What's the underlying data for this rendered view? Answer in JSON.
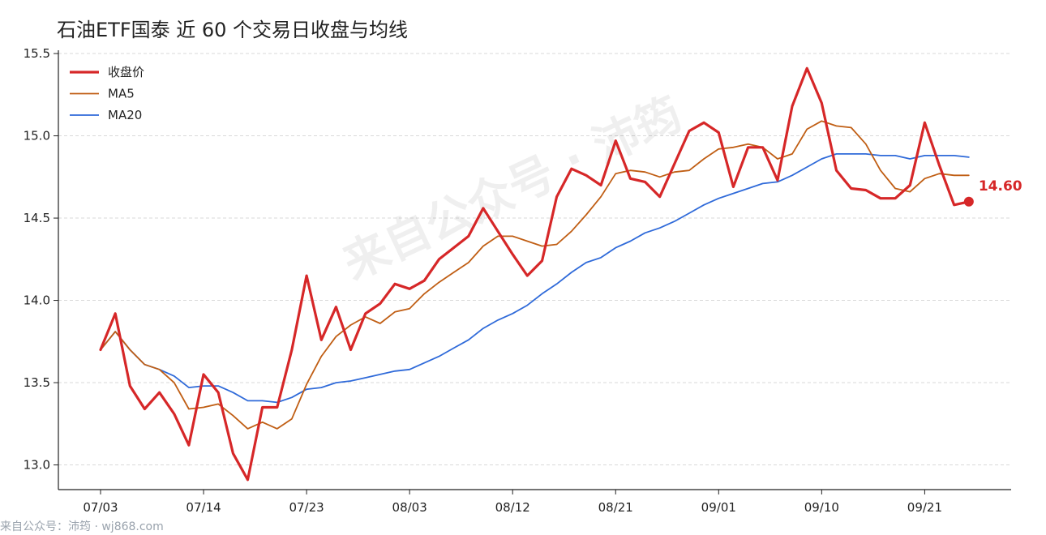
{
  "chart_data": {
    "type": "line",
    "title": "石油ETF国泰 近 60 个交易日收盘与均线",
    "xlabel": "",
    "ylabel": "",
    "ylim": [
      12.85,
      15.52
    ],
    "yticks": [
      13.0,
      13.5,
      14.0,
      14.5,
      15.0,
      15.5
    ],
    "grid": true,
    "legend_position": "top-left",
    "x_tick_labels": [
      {
        "index": 0,
        "label": "07/03"
      },
      {
        "index": 7,
        "label": "07/14"
      },
      {
        "index": 14,
        "label": "07/23"
      },
      {
        "index": 21,
        "label": "08/03"
      },
      {
        "index": 28,
        "label": "08/12"
      },
      {
        "index": 35,
        "label": "08/21"
      },
      {
        "index": 42,
        "label": "09/01"
      },
      {
        "index": 49,
        "label": "09/10"
      },
      {
        "index": 56,
        "label": "09/21"
      }
    ],
    "series": [
      {
        "name": "收盘价",
        "color": "#d62728",
        "values": [
          13.7,
          13.92,
          13.48,
          13.34,
          13.44,
          13.31,
          13.12,
          13.55,
          13.44,
          13.07,
          12.91,
          13.35,
          13.35,
          13.7,
          14.15,
          13.76,
          13.96,
          13.7,
          13.92,
          13.98,
          14.1,
          14.07,
          14.12,
          14.25,
          14.32,
          14.39,
          14.56,
          14.42,
          14.28,
          14.15,
          14.24,
          14.63,
          14.8,
          14.76,
          14.7,
          14.97,
          14.74,
          14.72,
          14.63,
          14.83,
          15.03,
          15.08,
          15.02,
          14.69,
          14.93,
          14.93,
          14.73,
          15.18,
          15.41,
          15.2,
          14.79,
          14.68,
          14.67,
          14.62,
          14.62,
          14.7,
          15.08,
          14.82,
          14.58,
          14.6
        ]
      },
      {
        "name": "MA5",
        "color": "#c05e14",
        "values": [
          13.7,
          13.81,
          13.7,
          13.61,
          13.58,
          13.5,
          13.34,
          13.35,
          13.37,
          13.3,
          13.22,
          13.26,
          13.22,
          13.28,
          13.49,
          13.66,
          13.78,
          13.85,
          13.9,
          13.86,
          13.93,
          13.95,
          14.04,
          14.11,
          14.17,
          14.23,
          14.33,
          14.39,
          14.39,
          14.36,
          14.33,
          14.34,
          14.42,
          14.52,
          14.63,
          14.77,
          14.79,
          14.78,
          14.75,
          14.78,
          14.79,
          14.86,
          14.92,
          14.93,
          14.95,
          14.93,
          14.86,
          14.89,
          15.04,
          15.09,
          15.06,
          15.05,
          14.95,
          14.79,
          14.68,
          14.66,
          14.74,
          14.77,
          14.76,
          14.76
        ]
      },
      {
        "name": "MA20",
        "color": "#2f6ad9",
        "values": [
          13.7,
          13.81,
          13.7,
          13.61,
          13.58,
          13.54,
          13.47,
          13.48,
          13.48,
          13.44,
          13.39,
          13.39,
          13.38,
          13.41,
          13.46,
          13.47,
          13.5,
          13.51,
          13.53,
          13.55,
          13.57,
          13.58,
          13.62,
          13.66,
          13.71,
          13.76,
          13.83,
          13.88,
          13.92,
          13.97,
          14.04,
          14.1,
          14.17,
          14.23,
          14.26,
          14.32,
          14.36,
          14.41,
          14.44,
          14.48,
          14.53,
          14.58,
          14.62,
          14.65,
          14.68,
          14.71,
          14.72,
          14.76,
          14.81,
          14.86,
          14.89,
          14.89,
          14.89,
          14.88,
          14.88,
          14.86,
          14.88,
          14.88,
          14.88,
          14.87
        ]
      }
    ],
    "last_value_label": "14.60"
  },
  "watermark": "来自公众号 · 沛筠",
  "footer": "来自公众号：沛筠 · wj868.com"
}
